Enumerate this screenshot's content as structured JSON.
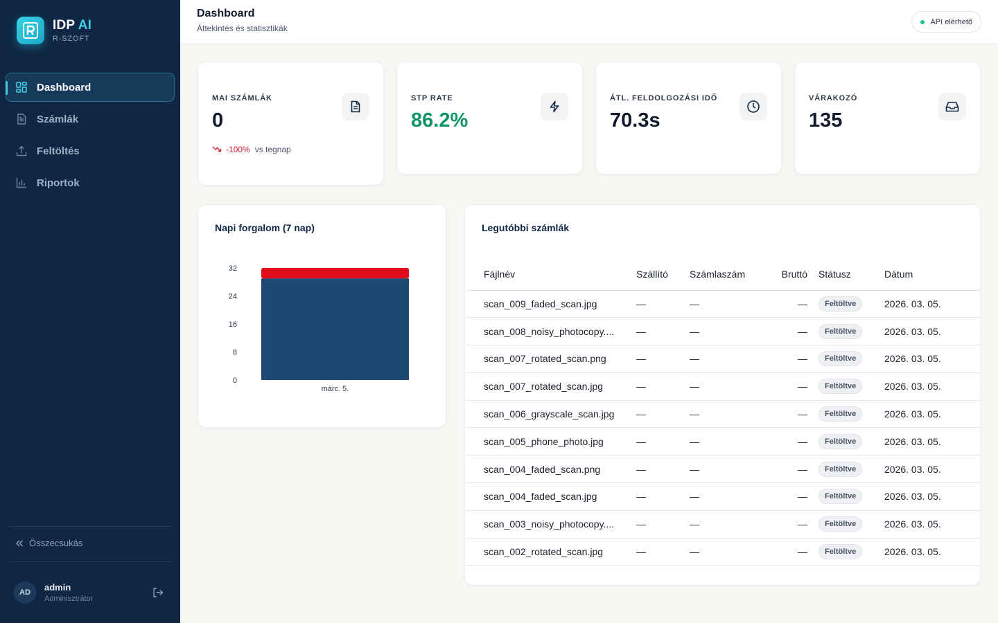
{
  "brand": {
    "title_main": "IDP",
    "title_accent": "AI",
    "subtitle": "R-SZOFT"
  },
  "nav": {
    "items": [
      {
        "label": "Dashboard",
        "icon": "dashboard-grid-icon",
        "active": true
      },
      {
        "label": "Számlák",
        "icon": "document-icon",
        "active": false
      },
      {
        "label": "Feltöltés",
        "icon": "upload-icon",
        "active": false
      },
      {
        "label": "Riportok",
        "icon": "bar-chart-icon",
        "active": false
      }
    ],
    "collapse_label": "Összecsukás"
  },
  "user": {
    "initials": "AD",
    "name": "admin",
    "role": "Adminisztrátor"
  },
  "header": {
    "title": "Dashboard",
    "subtitle": "Áttekintés és statisztikák",
    "api_status": "API elérhető"
  },
  "stats": [
    {
      "label": "MAI SZÁMLÁK",
      "value": "0",
      "icon": "file-text-icon",
      "trend_value": "-100%",
      "trend_text": "vs tegnap"
    },
    {
      "label": "STP RATE",
      "value": "86.2%",
      "icon": "lightning-icon"
    },
    {
      "label": "ÁTL. FELDOLGOZÁSI IDŐ",
      "value": "70.3s",
      "icon": "clock-icon"
    },
    {
      "label": "VÁRAKOZÓ",
      "value": "135",
      "icon": "inbox-icon"
    }
  ],
  "chart": {
    "title": "Napi forgalom (7 nap)"
  },
  "chart_data": {
    "type": "bar",
    "stacked": true,
    "categories": [
      "márc. 5."
    ],
    "series": [
      {
        "values": [
          29
        ],
        "color": "#1d4873"
      },
      {
        "values": [
          3
        ],
        "color": "#e00e1a"
      }
    ],
    "yticks": [
      0,
      8,
      16,
      24,
      32
    ],
    "ylim": [
      0,
      32
    ],
    "grid": false
  },
  "table": {
    "title": "Legutóbbi számlák",
    "columns": [
      "Fájlnév",
      "Szállító",
      "Számlaszám",
      "Bruttó",
      "Státusz",
      "Dátum"
    ],
    "rows": [
      [
        "scan_009_faded_scan.jpg",
        "—",
        "—",
        "—",
        "Feltöltve",
        "2026. 03. 05."
      ],
      [
        "scan_008_noisy_photocopy....",
        "—",
        "—",
        "—",
        "Feltöltve",
        "2026. 03. 05."
      ],
      [
        "scan_007_rotated_scan.png",
        "—",
        "—",
        "—",
        "Feltöltve",
        "2026. 03. 05."
      ],
      [
        "scan_007_rotated_scan.jpg",
        "—",
        "—",
        "—",
        "Feltöltve",
        "2026. 03. 05."
      ],
      [
        "scan_006_grayscale_scan.jpg",
        "—",
        "—",
        "—",
        "Feltöltve",
        "2026. 03. 05."
      ],
      [
        "scan_005_phone_photo.jpg",
        "—",
        "—",
        "—",
        "Feltöltve",
        "2026. 03. 05."
      ],
      [
        "scan_004_faded_scan.png",
        "—",
        "—",
        "—",
        "Feltöltve",
        "2026. 03. 05."
      ],
      [
        "scan_004_faded_scan.jpg",
        "—",
        "—",
        "—",
        "Feltöltve",
        "2026. 03. 05."
      ],
      [
        "scan_003_noisy_photocopy....",
        "—",
        "—",
        "—",
        "Feltöltve",
        "2026. 03. 05."
      ],
      [
        "scan_002_rotated_scan.jpg",
        "—",
        "—",
        "—",
        "Feltöltve",
        "2026. 03. 05."
      ]
    ]
  }
}
